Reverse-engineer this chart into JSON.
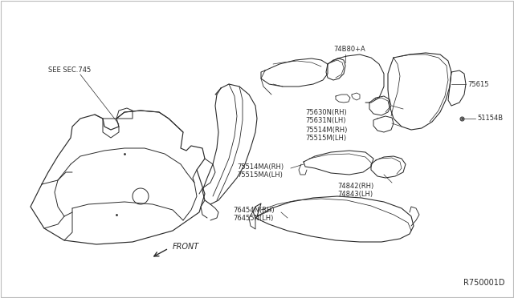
{
  "background_color": "#ffffff",
  "border_color": "#bbbbbb",
  "diagram_ref": "R750001D",
  "labels": {
    "see_sec": "SEE SEC.745",
    "front": "FRONT",
    "p74B80A": "74B80+A",
    "p75615": "75615",
    "p51154B": "51154B",
    "p75630N": "75630N(RH)",
    "p75631N": "75631N(LH)",
    "p75514M": "75514M(RH)",
    "p75515M": "75515M(LH)",
    "p75514MA": "75514MA(RH)",
    "p75515MA": "75515MA(LH)",
    "p74842": "74842(RH)",
    "p74843": "74843(LH)",
    "p76454N": "76454N(RH)",
    "p76455N": "76455N(LH)"
  },
  "line_color": "#2a2a2a",
  "label_fontsize": 6.0,
  "ref_fontsize": 7.0
}
